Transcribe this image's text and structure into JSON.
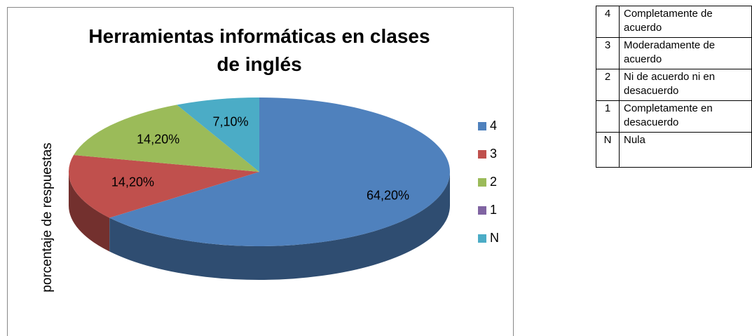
{
  "chart_data": {
    "type": "pie3d",
    "title": "Herramientas informáticas en  clases de inglés",
    "ylabel": "porcentaje de  respuestas",
    "categories": [
      "4",
      "3",
      "2",
      "1",
      "N"
    ],
    "values": [
      64.2,
      14.2,
      14.2,
      0,
      7.1
    ],
    "value_labels": [
      "64,20%",
      "14,20%",
      "14,20%",
      null,
      "7,10%"
    ],
    "colors": [
      "#4f81bd",
      "#c0504d",
      "#9bbb59",
      "#8064a2",
      "#4bacc6"
    ],
    "legend": "right"
  },
  "table": {
    "rows": [
      [
        "4",
        "Completamente de acuerdo"
      ],
      [
        "3",
        "Moderadamente de acuerdo"
      ],
      [
        "2",
        "Ni de acuerdo ni en desacuerdo"
      ],
      [
        "1",
        "Completamente en desacuerdo"
      ],
      [
        "N",
        "Nula"
      ]
    ]
  }
}
